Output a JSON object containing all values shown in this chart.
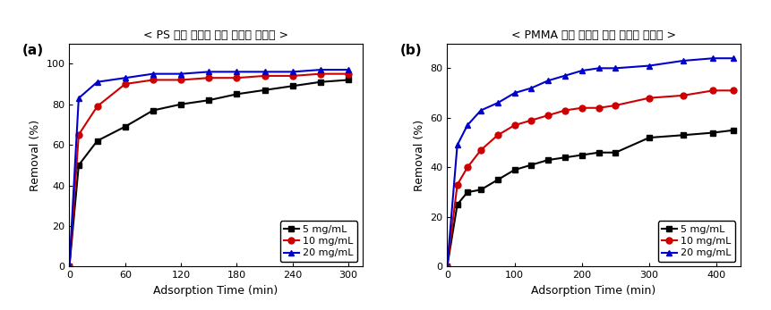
{
  "panel_a": {
    "title": "< PS 기반 다공성 유기 고분자 구조체 >",
    "xlabel": "Adsorption Time (min)",
    "ylabel": "Removal (%)",
    "xlim": [
      0,
      315
    ],
    "ylim": [
      0,
      110
    ],
    "xticks": [
      0,
      60,
      120,
      180,
      240,
      300
    ],
    "yticks": [
      0,
      20,
      40,
      60,
      80,
      100
    ],
    "series": [
      {
        "label": "5 mg/mL",
        "color": "#000000",
        "marker": "s",
        "x": [
          0,
          10,
          30,
          60,
          90,
          120,
          150,
          180,
          210,
          240,
          270,
          300
        ],
        "y": [
          0,
          50,
          62,
          69,
          77,
          80,
          82,
          85,
          87,
          89,
          91,
          92
        ]
      },
      {
        "label": "10 mg/mL",
        "color": "#cc0000",
        "marker": "o",
        "x": [
          0,
          10,
          30,
          60,
          90,
          120,
          150,
          180,
          210,
          240,
          270,
          300
        ],
        "y": [
          0,
          65,
          79,
          90,
          92,
          92,
          93,
          93,
          94,
          94,
          95,
          95
        ]
      },
      {
        "label": "20 mg/mL",
        "color": "#0000cc",
        "marker": "^",
        "x": [
          0,
          10,
          30,
          60,
          90,
          120,
          150,
          180,
          210,
          240,
          270,
          300
        ],
        "y": [
          0,
          83,
          91,
          93,
          95,
          95,
          96,
          96,
          96,
          96,
          97,
          97
        ]
      }
    ]
  },
  "panel_b": {
    "title": "< PMMA 기반 다공성 유기 고분자 구조체 >",
    "xlabel": "Adsorption Time (min)",
    "ylabel": "Removal (%)",
    "xlim": [
      0,
      435
    ],
    "ylim": [
      0,
      90
    ],
    "xticks": [
      0,
      100,
      200,
      300,
      400
    ],
    "yticks": [
      0,
      20,
      40,
      60,
      80
    ],
    "series": [
      {
        "label": "5 mg/mL",
        "color": "#000000",
        "marker": "s",
        "x": [
          0,
          15,
          30,
          50,
          75,
          100,
          125,
          150,
          175,
          200,
          225,
          250,
          300,
          350,
          395,
          425
        ],
        "y": [
          0,
          25,
          30,
          31,
          35,
          39,
          41,
          43,
          44,
          45,
          46,
          46,
          52,
          53,
          54,
          55
        ]
      },
      {
        "label": "10 mg/mL",
        "color": "#cc0000",
        "marker": "o",
        "x": [
          0,
          15,
          30,
          50,
          75,
          100,
          125,
          150,
          175,
          200,
          225,
          250,
          300,
          350,
          395,
          425
        ],
        "y": [
          0,
          33,
          40,
          47,
          53,
          57,
          59,
          61,
          63,
          64,
          64,
          65,
          68,
          69,
          71,
          71
        ]
      },
      {
        "label": "20 mg/mL",
        "color": "#0000cc",
        "marker": "^",
        "x": [
          0,
          15,
          30,
          50,
          75,
          100,
          125,
          150,
          175,
          200,
          225,
          250,
          300,
          350,
          395,
          425
        ],
        "y": [
          0,
          49,
          57,
          63,
          66,
          70,
          72,
          75,
          77,
          79,
          80,
          80,
          81,
          83,
          84,
          84
        ]
      }
    ]
  },
  "label_fontsize": 9,
  "tick_fontsize": 8,
  "title_fontsize": 9,
  "legend_fontsize": 8,
  "linewidth": 1.5,
  "markersize": 5
}
